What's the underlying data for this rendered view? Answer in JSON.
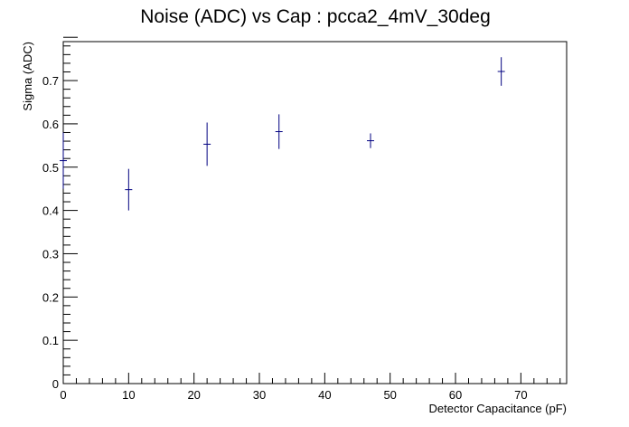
{
  "chart_data": {
    "type": "scatter",
    "title": "Noise (ADC) vs Cap : pcca2_4mV_30deg",
    "xlabel": "Detector Capacitance (pF)",
    "ylabel": "Sigma (ADC)",
    "xlim": [
      0,
      77
    ],
    "ylim": [
      0,
      0.79
    ],
    "x_ticks": [
      0,
      10,
      20,
      30,
      40,
      50,
      60,
      70
    ],
    "y_ticks": [
      0,
      0.1,
      0.2,
      0.3,
      0.4,
      0.5,
      0.6,
      0.7
    ],
    "x_tick_labels": [
      "0",
      "10",
      "20",
      "30",
      "40",
      "50",
      "60",
      "70"
    ],
    "y_tick_labels": [
      "0",
      "0.1",
      "0.2",
      "0.3",
      "0.4",
      "0.5",
      "0.6",
      "0.7"
    ],
    "grid": false,
    "marker_color": "#000080",
    "points": [
      {
        "x": 0,
        "y": 0.515,
        "yerr": 0.065
      },
      {
        "x": 10,
        "y": 0.448,
        "yerr": 0.048
      },
      {
        "x": 22,
        "y": 0.553,
        "yerr": 0.05
      },
      {
        "x": 33,
        "y": 0.582,
        "yerr": 0.04
      },
      {
        "x": 47,
        "y": 0.561,
        "yerr": 0.017
      },
      {
        "x": 67,
        "y": 0.721,
        "yerr": 0.033
      }
    ]
  }
}
